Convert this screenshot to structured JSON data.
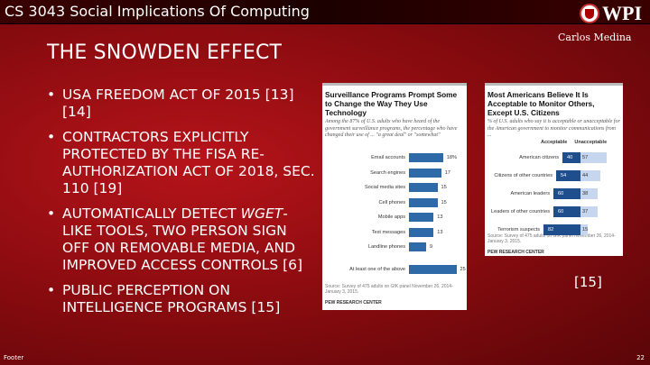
{
  "header": {
    "course": "CS 3043 Social Implications Of Computing",
    "logo_text": "WPI",
    "author": "Carlos Medina"
  },
  "slide": {
    "title": "THE SNOWDEN EFFECT",
    "bullets": [
      "USA Freedom Act of 2015 [13][14]",
      "Contractors explicitly protected by the FISA Re-Authorization Act of 2018, Sec. 110 [19]",
      "Automatically detect wget-like tools, two person sign off on removable media, and improved access controls [6]",
      "Public perception on intelligence programs [15]"
    ],
    "bullet3_parts": {
      "pre": "Automatically detect ",
      "em": "wget",
      "post": "-like tools, two person sign off on removable media, and improved access controls [6]"
    },
    "reference": "[15]"
  },
  "chart_data": [
    {
      "type": "bar",
      "title": "Surveillance Programs Prompt Some to Change the Way They Use Technology",
      "subtitle": "Among the 87% of U.S. adults who have heard of the government surveillance programs, the percentage who have changed their use of ... \"a great deal\" or \"somewhat\"",
      "categories": [
        "Email accounts",
        "Search engines",
        "Social media sites",
        "Cell phones",
        "Mobile apps",
        "Text messages",
        "Landline phones",
        "At least one of the above"
      ],
      "values": [
        18,
        17,
        15,
        15,
        13,
        13,
        9,
        25
      ],
      "value_labels": [
        "18%",
        "17",
        "15",
        "15",
        "13",
        "13",
        "9",
        "25"
      ],
      "color": "#2e6aa7",
      "source": "Source: Survey of 475 adults on GfK panel November 26, 2014-January 3, 2015.",
      "credit": "PEW RESEARCH CENTER"
    },
    {
      "type": "bar",
      "stacked": true,
      "title": "Most Americans Believe It Is Acceptable to Monitor Others, Except U.S. Citizens",
      "subtitle": "% of U.S. adults who say it is acceptable or unacceptable for the American government to monitor communications from ...",
      "categories": [
        "American citizens",
        "Citizens of other countries",
        "American leaders",
        "Leaders of other countries",
        "Terrorism suspects"
      ],
      "series": [
        {
          "name": "Acceptable",
          "values": [
            40,
            54,
            60,
            60,
            82
          ],
          "color": "#1f4e8c"
        },
        {
          "name": "Unacceptable",
          "values": [
            57,
            44,
            38,
            37,
            15
          ],
          "color": "#c5d6ee"
        }
      ],
      "source": "Source: Survey of 475 adults on GfK panel November 26, 2014-January 3, 2015.",
      "credit": "PEW RESEARCH CENTER"
    }
  ],
  "footer": {
    "text": "Footer",
    "page": "22"
  }
}
